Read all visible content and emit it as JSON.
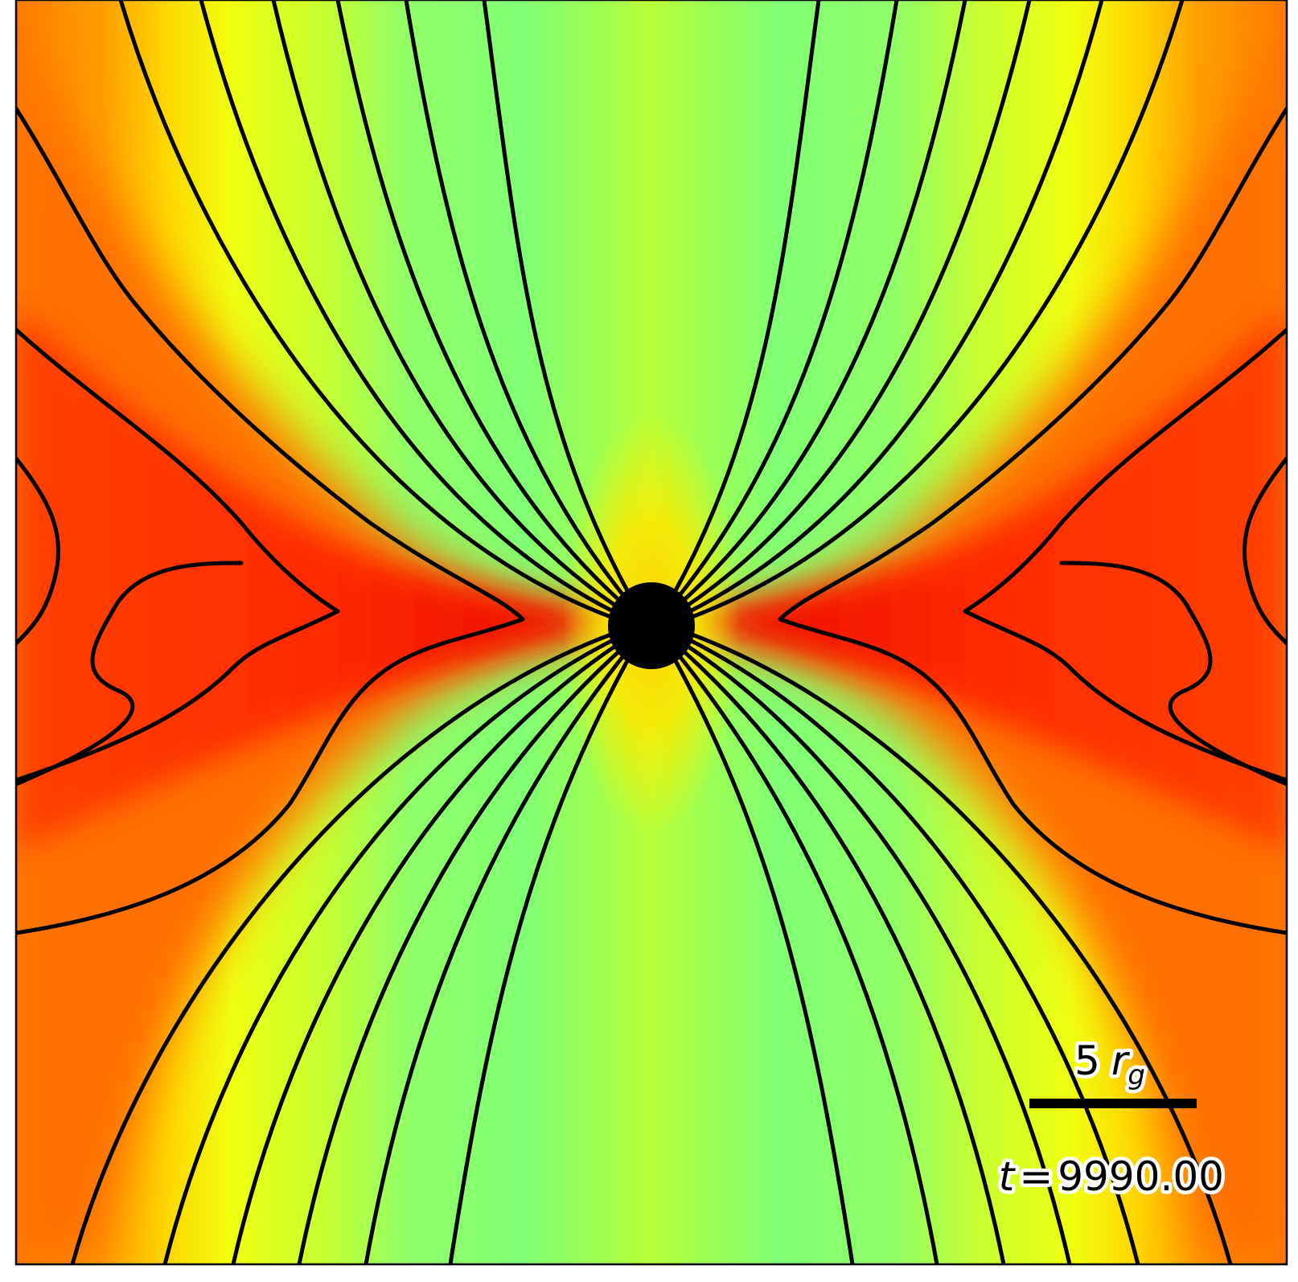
{
  "figure": {
    "colors": {
      "polar_green": "#7cff78",
      "axis_yellow_green": "#b4ff3c",
      "yellow": "#ffff0a",
      "orange": "#ff7800",
      "red": "#ff3200",
      "dark_red": "#dc0000",
      "line": "#000000",
      "black_hole": "#000000"
    },
    "scale_bar": {
      "number": "5",
      "symbol": "r",
      "subscript": "g"
    },
    "time_label": {
      "symbol": "t",
      "equals": "=",
      "value": "9990.00"
    }
  }
}
